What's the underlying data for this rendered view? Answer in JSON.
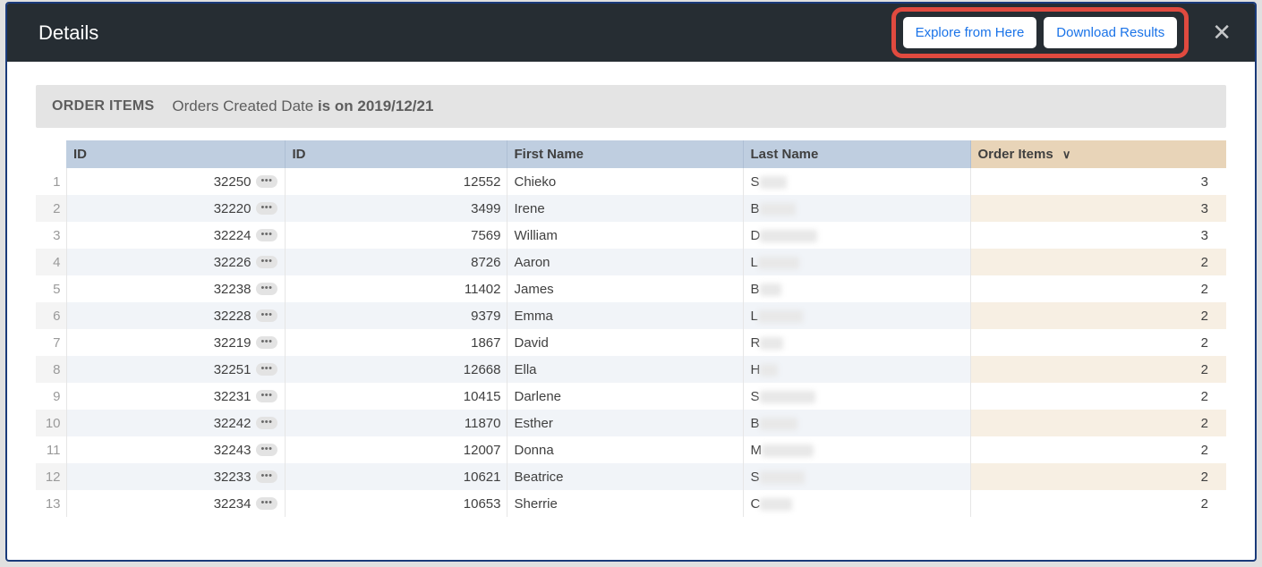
{
  "header": {
    "title": "Details",
    "explore_label": "Explore from Here",
    "download_label": "Download Results"
  },
  "filter": {
    "group": "ORDER ITEMS",
    "field": "Orders Created Date",
    "op": "is on",
    "value": "2019/12/21"
  },
  "columns": {
    "id1": "ID",
    "id2": "ID",
    "first_name": "First Name",
    "last_name": "Last Name",
    "order_items": "Order Items"
  },
  "rows": [
    {
      "n": "1",
      "id1": "32250",
      "id2": "12552",
      "fn": "Chieko",
      "ln": "S",
      "blur_w": 30,
      "oi": "3"
    },
    {
      "n": "2",
      "id1": "32220",
      "id2": "3499",
      "fn": "Irene",
      "ln": "B",
      "blur_w": 40,
      "oi": "3"
    },
    {
      "n": "3",
      "id1": "32224",
      "id2": "7569",
      "fn": "William",
      "ln": "D",
      "blur_w": 64,
      "oi": "3"
    },
    {
      "n": "4",
      "id1": "32226",
      "id2": "8726",
      "fn": "Aaron",
      "ln": "L",
      "blur_w": 46,
      "oi": "2"
    },
    {
      "n": "5",
      "id1": "32238",
      "id2": "11402",
      "fn": "James",
      "ln": "B",
      "blur_w": 24,
      "oi": "2"
    },
    {
      "n": "6",
      "id1": "32228",
      "id2": "9379",
      "fn": "Emma",
      "ln": "L",
      "blur_w": 50,
      "oi": "2"
    },
    {
      "n": "7",
      "id1": "32219",
      "id2": "1867",
      "fn": "David",
      "ln": "R",
      "blur_w": 26,
      "oi": "2"
    },
    {
      "n": "8",
      "id1": "32251",
      "id2": "12668",
      "fn": "Ella",
      "ln": "H",
      "blur_w": 20,
      "oi": "2"
    },
    {
      "n": "9",
      "id1": "32231",
      "id2": "10415",
      "fn": "Darlene",
      "ln": "S",
      "blur_w": 62,
      "oi": "2"
    },
    {
      "n": "10",
      "id1": "32242",
      "id2": "11870",
      "fn": "Esther",
      "ln": "B",
      "blur_w": 42,
      "oi": "2"
    },
    {
      "n": "11",
      "id1": "32243",
      "id2": "12007",
      "fn": "Donna",
      "ln": "M",
      "blur_w": 58,
      "oi": "2"
    },
    {
      "n": "12",
      "id1": "32233",
      "id2": "10621",
      "fn": "Beatrice",
      "ln": "S",
      "blur_w": 50,
      "oi": "2"
    },
    {
      "n": "13",
      "id1": "32234",
      "id2": "10653",
      "fn": "Sherrie",
      "ln": "C",
      "blur_w": 36,
      "oi": "2"
    }
  ],
  "colors": {
    "header_bg": "#262d33",
    "highlight_border": "#e04a3f",
    "dim_header_bg": "#bfcee0",
    "meas_header_bg": "#e8d4b8",
    "link_blue": "#1a73e8"
  }
}
